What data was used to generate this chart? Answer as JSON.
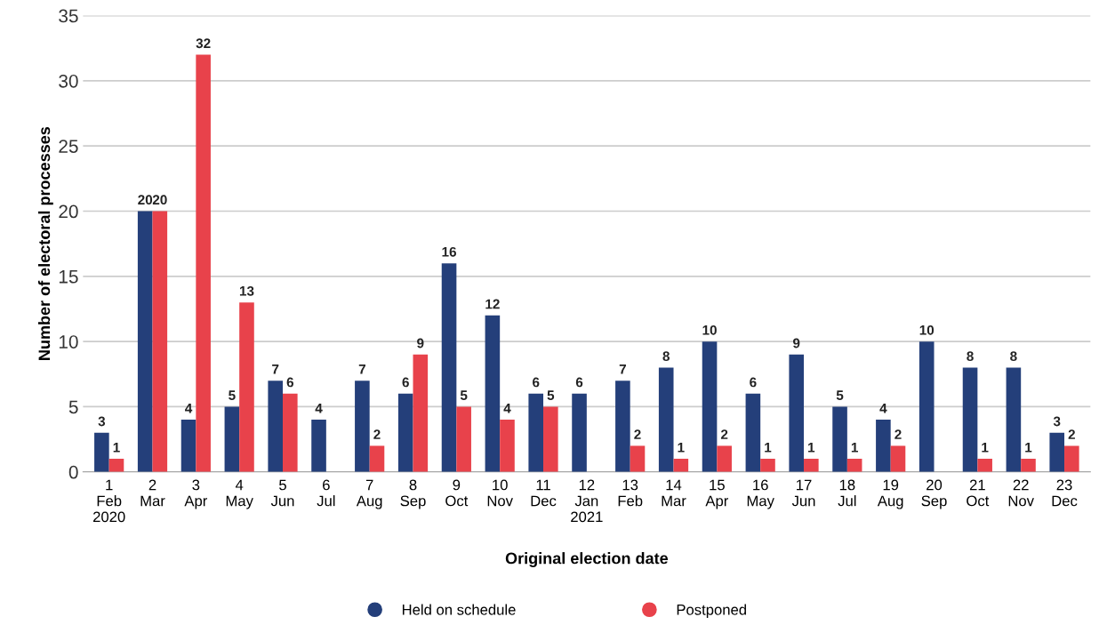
{
  "chart_data": {
    "type": "bar",
    "xlabel": "Original election date",
    "ylabel": "Number of electoral processes",
    "categories": [
      "1\nFeb\n2020",
      "2\nMar",
      "3\nApr",
      "4\nMay",
      "5\nJun",
      "6\nJul",
      "7\nAug",
      "8\nSep",
      "9\nOct",
      "10\nNov",
      "11\nDec",
      "12\nJan\n2021",
      "13\nFeb",
      "14\nMar",
      "15\nApr",
      "16\nMay",
      "17\nJun",
      "18\nJul",
      "19\nAug",
      "20\nSep",
      "21\nOct",
      "22\nNov",
      "23\nDec"
    ],
    "series": [
      {
        "name": "Held on schedule",
        "color": "#243f7a",
        "values": [
          3,
          20,
          4,
          5,
          7,
          4,
          7,
          6,
          16,
          12,
          6,
          6,
          7,
          8,
          10,
          6,
          9,
          5,
          4,
          10,
          8,
          8,
          3
        ]
      },
      {
        "name": "Postponed",
        "color": "#e8424b",
        "values": [
          1,
          20,
          32,
          13,
          6,
          null,
          2,
          9,
          5,
          4,
          5,
          null,
          2,
          1,
          2,
          1,
          1,
          1,
          2,
          null,
          1,
          1,
          2
        ]
      }
    ],
    "ylim": [
      0,
      35
    ],
    "yticks": [
      0,
      5,
      10,
      15,
      20,
      25,
      30,
      35
    ],
    "grid": "y",
    "legend": "bottom",
    "data_labels": true
  }
}
